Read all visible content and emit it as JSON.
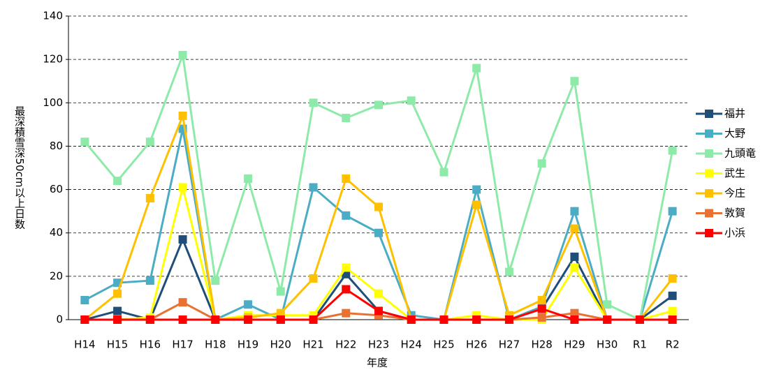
{
  "chart_data": {
    "type": "line",
    "y_label": "最深積雪深50cm以上日数",
    "x_label": "年度",
    "categories": [
      "H14",
      "H15",
      "H16",
      "H17",
      "H18",
      "H19",
      "H20",
      "H21",
      "H22",
      "H23",
      "H24",
      "H25",
      "H26",
      "H27",
      "H28",
      "H29",
      "H30",
      "R1",
      "R2"
    ],
    "series": [
      {
        "name": "福井",
        "color": "#1f4e79",
        "values": [
          0,
          4,
          0,
          37,
          0,
          0,
          0,
          0,
          21,
          4,
          0,
          0,
          0,
          0,
          5,
          29,
          0,
          0,
          11
        ]
      },
      {
        "name": "大野",
        "color": "#4bacc6",
        "values": [
          9,
          17,
          18,
          88,
          0,
          7,
          0,
          61,
          48,
          40,
          2,
          0,
          60,
          0,
          6,
          50,
          0,
          0,
          50
        ]
      },
      {
        "name": "九頭竜",
        "color": "#8eeaa8",
        "values": [
          82,
          64,
          82,
          122,
          18,
          65,
          13,
          100,
          93,
          99,
          101,
          68,
          116,
          22,
          72,
          110,
          7,
          0,
          78
        ]
      },
      {
        "name": "武生",
        "color": "#ffff00",
        "values": [
          0,
          0,
          1,
          61,
          0,
          2,
          2,
          2,
          24,
          12,
          0,
          0,
          2,
          0,
          0,
          24,
          0,
          0,
          4
        ]
      },
      {
        "name": "今庄",
        "color": "#ffc000",
        "values": [
          0,
          12,
          56,
          94,
          0,
          1,
          3,
          19,
          65,
          52,
          0,
          0,
          53,
          2,
          9,
          42,
          0,
          0,
          19
        ]
      },
      {
        "name": "敦賀",
        "color": "#e97132",
        "values": [
          0,
          0,
          0,
          8,
          0,
          0,
          0,
          0,
          3,
          2,
          0,
          0,
          0,
          0,
          1,
          3,
          0,
          0,
          0
        ]
      },
      {
        "name": "小浜",
        "color": "#ff0000",
        "values": [
          0,
          0,
          0,
          0,
          0,
          0,
          0,
          0,
          14,
          4,
          0,
          0,
          0,
          0,
          5,
          0,
          0,
          0,
          0
        ]
      }
    ],
    "ylim": [
      0,
      140
    ],
    "yticks": [
      0,
      20,
      40,
      60,
      80,
      100,
      120,
      140
    ],
    "grid": true,
    "legend": "right"
  }
}
